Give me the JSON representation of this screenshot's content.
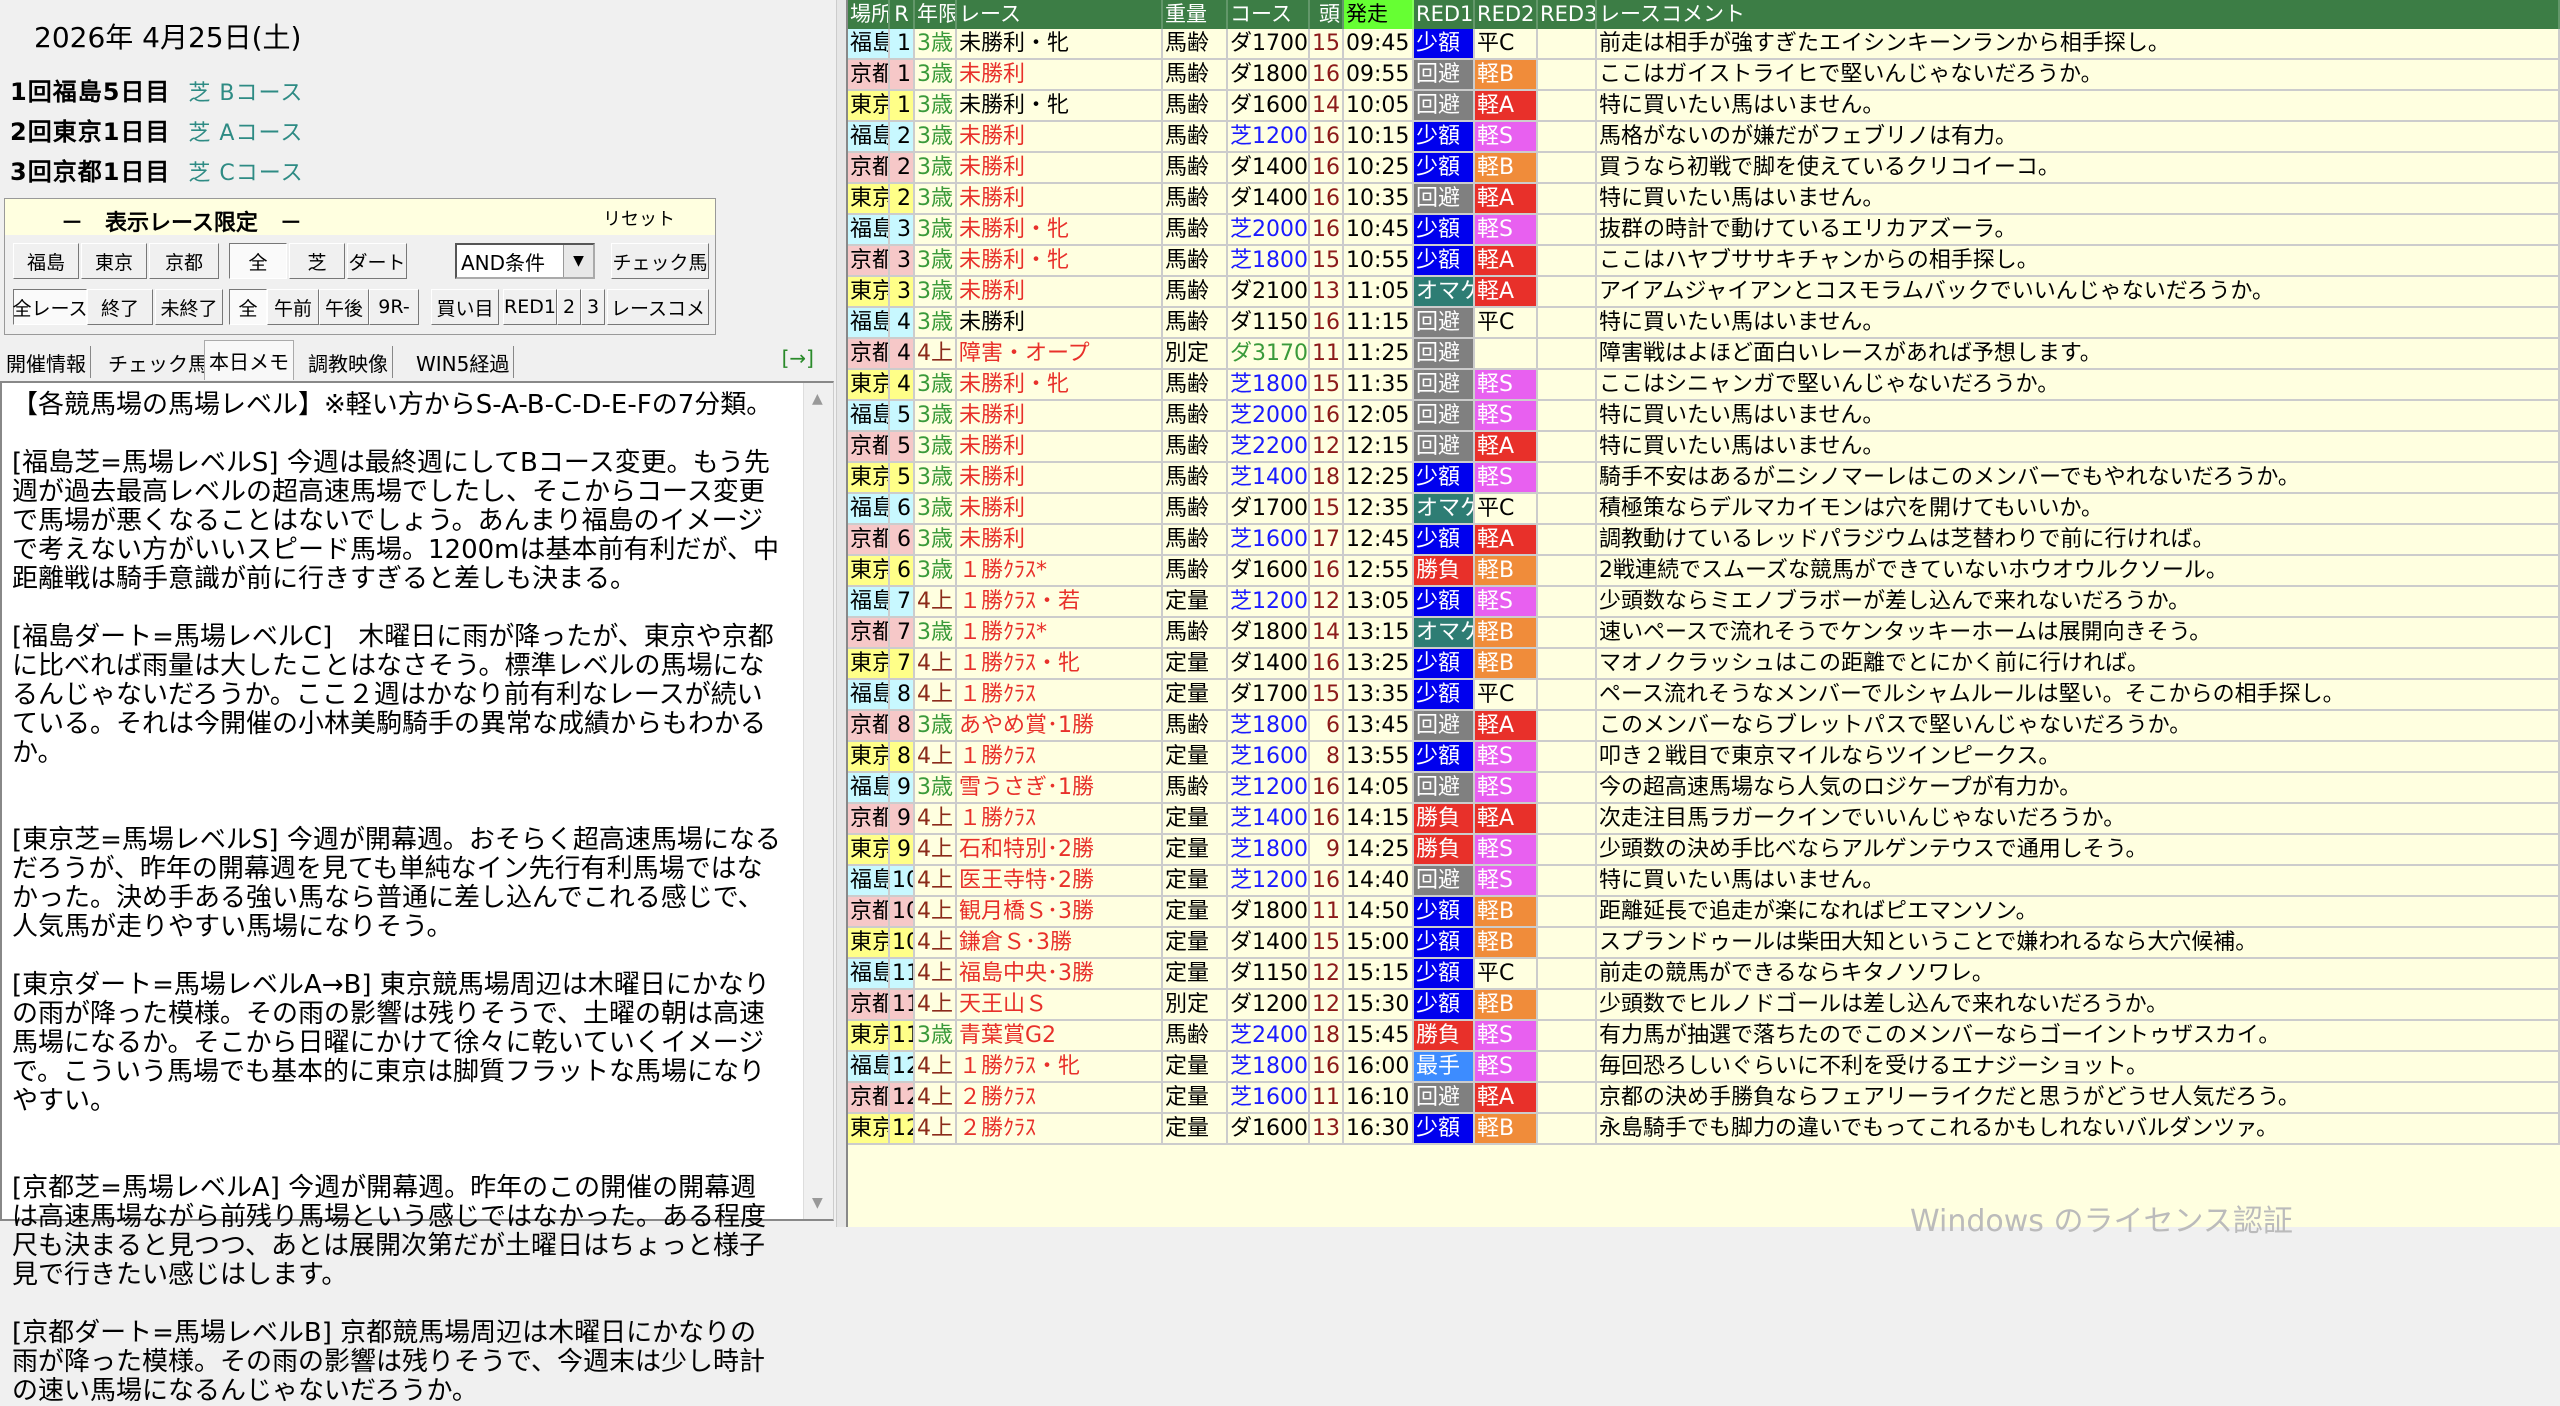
{
  "date": "2026年 4月25日(土)",
  "venues": [
    {
      "label": "1回福島5日目",
      "course": "芝 Bコース"
    },
    {
      "label": "2回東京1日目",
      "course": "芝 Aコース"
    },
    {
      "label": "3回京都1日目",
      "course": "芝 Cコース"
    }
  ],
  "filter": {
    "title": "－　表示レース限定　－",
    "reset": "リセット",
    "row1": [
      "福島",
      "東京",
      "京都",
      "全",
      "芝",
      "ダート"
    ],
    "condition": "AND条件",
    "check_horse": "チェック馬",
    "row2": [
      "全レース",
      "終了",
      "未終了",
      "全",
      "午前",
      "午後",
      "9R-",
      "買い目",
      "RED1",
      "2",
      "3",
      "レースコメ"
    ]
  },
  "tabs": [
    "開催情報",
    "チェック馬",
    "本日メモ",
    "調教映像",
    "WIN5経過"
  ],
  "active_tab": "本日メモ",
  "tab_arrow": "[→]",
  "memo": "【各競馬場の馬場レベル】※軽い方からS-A-B-C-D-E-Fの7分類。\n\n[福島芝=馬場レベルS] 今週は最終週にしてBコース変更。もう先週が過去最高レベルの超高速馬場でしたし、そこからコース変更で馬場が悪くなることはないでしょう。あんまり福島のイメージで考えない方がいいスピード馬場。1200mは基本前有利だが、中距離戦は騎手意識が前に行きすぎると差しも決まる。\n\n[福島ダート=馬場レベルC]　木曜日に雨が降ったが、東京や京都に比べれば雨量は大したことはなさそう。標準レベルの馬場になるんじゃないだろうか。ここ２週はかなり前有利なレースが続いている。それは今開催の小林美駒騎手の異常な成績からもわかるか。\n\n\n[東京芝=馬場レベルS] 今週が開幕週。おそらく超高速馬場になるだろうが、昨年の開幕週を見ても単純なイン先行有利馬場ではなかった。決め手ある強い馬なら普通に差し込んでこれる感じで、人気馬が走りやすい馬場になりそう。\n\n[東京ダート=馬場レベルA→B] 東京競馬場周辺は木曜日にかなりの雨が降った模様。その雨の影響は残りそうで、土曜の朝は高速馬場になるか。そこから日曜にかけて徐々に乾いていくイメージで。こういう馬場でも基本的に東京は脚質フラットな馬場になりやすい。\n\n\n[京都芝=馬場レベルA] 今週が開幕週。昨年のこの開催の開幕週は高速馬場ながら前残り馬場という感じではなかった。ある程度尺も決まると見つつ、あとは展開次第だが土曜日はちょっと様子見で行きたい感じはします。\n\n[京都ダート=馬場レベルB] 京都競馬場周辺は木曜日にかなりの雨が降った模様。その雨の影響は残りそうで、今週末は少し時計の速い馬場になるんじゃないだろうか。",
  "columns": [
    "場所",
    "R",
    "年限",
    "レース",
    "重量",
    "コース",
    "頭",
    "発走",
    "RED1",
    "RED2",
    "RED3",
    "レースコメント"
  ],
  "colors": {
    "header": "#3c7d45",
    "start_header": "#66ff33",
    "venue": {
      "福島": "#c8f8ff",
      "京都": "#f6c8c8",
      "東京": "#ffff88"
    },
    "age": {
      "3歳": "#3a9a3a",
      "4上": "#8b2a1a"
    },
    "race_red": "#e8302a",
    "heads": "#8b1a1a",
    "turf": "#1a1aff",
    "dirt": "#000000",
    "steeple": "#3a9a3a",
    "mark1": {
      "少額": "#0000ee",
      "回避": "#808080",
      "オマケ": "#2e7d74",
      "勝負": "#e8302a",
      "最手": "#3d8cff"
    },
    "mark2": {
      "軽B": "#f08c3a",
      "軽A": "#e8302a",
      "軽S": "#e860f0",
      "平C": ""
    }
  },
  "rows": [
    {
      "venue": "福島",
      "r": "1",
      "age": "3歳",
      "race": "未勝利・牝",
      "race_red": false,
      "weight": "馬齢",
      "course": "ダ1700",
      "heads": "15",
      "time": "09:45",
      "m1": "少額",
      "m2": "平C",
      "m3": "",
      "comment": "前走は相手が強すぎたエイシンキーンランから相手探し。"
    },
    {
      "venue": "京都",
      "r": "1",
      "age": "3歳",
      "race": "未勝利",
      "race_red": true,
      "weight": "馬齢",
      "course": "ダ1800",
      "heads": "16",
      "time": "09:55",
      "m1": "回避",
      "m2": "軽B",
      "m3": "",
      "comment": "ここはガイストライヒで堅いんじゃないだろうか。"
    },
    {
      "venue": "東京",
      "r": "1",
      "age": "3歳",
      "race": "未勝利・牝",
      "race_red": false,
      "weight": "馬齢",
      "course": "ダ1600",
      "heads": "14",
      "time": "10:05",
      "m1": "回避",
      "m2": "軽A",
      "m3": "",
      "comment": "特に買いたい馬はいません。"
    },
    {
      "venue": "福島",
      "r": "2",
      "age": "3歳",
      "race": "未勝利",
      "race_red": true,
      "weight": "馬齢",
      "course": "芝1200",
      "heads": "16",
      "time": "10:15",
      "m1": "少額",
      "m2": "軽S",
      "m3": "",
      "comment": "馬格がないのが嫌だがフェブリノは有力。"
    },
    {
      "venue": "京都",
      "r": "2",
      "age": "3歳",
      "race": "未勝利",
      "race_red": true,
      "weight": "馬齢",
      "course": "ダ1400",
      "heads": "16",
      "time": "10:25",
      "m1": "少額",
      "m2": "軽B",
      "m3": "",
      "comment": "買うなら初戦で脚を使えているクリコイーコ。"
    },
    {
      "venue": "東京",
      "r": "2",
      "age": "3歳",
      "race": "未勝利",
      "race_red": true,
      "weight": "馬齢",
      "course": "ダ1400",
      "heads": "16",
      "time": "10:35",
      "m1": "回避",
      "m2": "軽A",
      "m3": "",
      "comment": "特に買いたい馬はいません。"
    },
    {
      "venue": "福島",
      "r": "3",
      "age": "3歳",
      "race": "未勝利・牝",
      "race_red": true,
      "weight": "馬齢",
      "course": "芝2000",
      "heads": "16",
      "time": "10:45",
      "m1": "少額",
      "m2": "軽S",
      "m3": "",
      "comment": "抜群の時計で動けているエリカアズーラ。"
    },
    {
      "venue": "京都",
      "r": "3",
      "age": "3歳",
      "race": "未勝利・牝",
      "race_red": true,
      "weight": "馬齢",
      "course": "芝1800",
      "heads": "15",
      "time": "10:55",
      "m1": "少額",
      "m2": "軽A",
      "m3": "",
      "comment": "ここはハヤブササキチャンからの相手探し。"
    },
    {
      "venue": "東京",
      "r": "3",
      "age": "3歳",
      "race": "未勝利",
      "race_red": true,
      "weight": "馬齢",
      "course": "ダ2100",
      "heads": "13",
      "time": "11:05",
      "m1": "オマケ",
      "m2": "軽A",
      "m3": "",
      "comment": "アイアムジャイアンとコスモラムバックでいいんじゃないだろうか。"
    },
    {
      "venue": "福島",
      "r": "4",
      "age": "3歳",
      "race": "未勝利",
      "race_red": false,
      "weight": "馬齢",
      "course": "ダ1150",
      "heads": "16",
      "time": "11:15",
      "m1": "回避",
      "m2": "平C",
      "m3": "",
      "comment": "特に買いたい馬はいません。"
    },
    {
      "venue": "京都",
      "r": "4",
      "age": "4上",
      "race": "障害・オープ",
      "race_red": true,
      "weight": "別定",
      "course": "ダ3170",
      "heads": "11",
      "time": "11:25",
      "m1": "回避",
      "m2": "",
      "m3": "",
      "comment": "障害戦はよほど面白いレースがあれば予想します。"
    },
    {
      "venue": "東京",
      "r": "4",
      "age": "3歳",
      "race": "未勝利・牝",
      "race_red": true,
      "weight": "馬齢",
      "course": "芝1800",
      "heads": "15",
      "time": "11:35",
      "m1": "回避",
      "m2": "軽S",
      "m3": "",
      "comment": "ここはシニャンガで堅いんじゃないだろうか。"
    },
    {
      "venue": "福島",
      "r": "5",
      "age": "3歳",
      "race": "未勝利",
      "race_red": true,
      "weight": "馬齢",
      "course": "芝2000",
      "heads": "16",
      "time": "12:05",
      "m1": "回避",
      "m2": "軽S",
      "m3": "",
      "comment": "特に買いたい馬はいません。"
    },
    {
      "venue": "京都",
      "r": "5",
      "age": "3歳",
      "race": "未勝利",
      "race_red": true,
      "weight": "馬齢",
      "course": "芝2200",
      "heads": "12",
      "time": "12:15",
      "m1": "回避",
      "m2": "軽A",
      "m3": "",
      "comment": "特に買いたい馬はいません。"
    },
    {
      "venue": "東京",
      "r": "5",
      "age": "3歳",
      "race": "未勝利",
      "race_red": true,
      "weight": "馬齢",
      "course": "芝1400",
      "heads": "18",
      "time": "12:25",
      "m1": "少額",
      "m2": "軽S",
      "m3": "",
      "comment": "騎手不安はあるがニシノマーレはこのメンバーでもやれないだろうか。"
    },
    {
      "venue": "福島",
      "r": "6",
      "age": "3歳",
      "race": "未勝利",
      "race_red": true,
      "weight": "馬齢",
      "course": "ダ1700",
      "heads": "15",
      "time": "12:35",
      "m1": "オマケ",
      "m2": "平C",
      "m3": "",
      "comment": "積極策ならデルマカイモンは穴を開けてもいいか。"
    },
    {
      "venue": "京都",
      "r": "6",
      "age": "3歳",
      "race": "未勝利",
      "race_red": true,
      "weight": "馬齢",
      "course": "芝1600",
      "heads": "17",
      "time": "12:45",
      "m1": "少額",
      "m2": "軽A",
      "m3": "",
      "comment": "調教動けているレッドパラジウムは芝替わりで前に行ければ。"
    },
    {
      "venue": "東京",
      "r": "6",
      "age": "3歳",
      "race": "１勝ｸﾗｽ*",
      "race_red": true,
      "weight": "馬齢",
      "course": "ダ1600",
      "heads": "16",
      "time": "12:55",
      "m1": "勝負",
      "m2": "軽B",
      "m3": "",
      "comment": "2戦連続でスムーズな競馬ができていないホウオウルクソール。"
    },
    {
      "venue": "福島",
      "r": "7",
      "age": "4上",
      "race": "１勝ｸﾗｽ・若",
      "race_red": true,
      "weight": "定量",
      "course": "芝1200",
      "heads": "12",
      "time": "13:05",
      "m1": "少額",
      "m2": "軽S",
      "m3": "",
      "comment": "少頭数ならミエノブラボーが差し込んで来れないだろうか。"
    },
    {
      "venue": "京都",
      "r": "7",
      "age": "3歳",
      "race": "１勝ｸﾗｽ*",
      "race_red": true,
      "weight": "馬齢",
      "course": "ダ1800",
      "heads": "14",
      "time": "13:15",
      "m1": "オマケ",
      "m2": "軽B",
      "m3": "",
      "comment": "速いペースで流れそうでケンタッキーホームは展開向きそう。"
    },
    {
      "venue": "東京",
      "r": "7",
      "age": "4上",
      "race": "１勝ｸﾗｽ・牝",
      "race_red": true,
      "weight": "定量",
      "course": "ダ1400",
      "heads": "16",
      "time": "13:25",
      "m1": "少額",
      "m2": "軽B",
      "m3": "",
      "comment": "マオノクラッシュはこの距離でとにかく前に行ければ。"
    },
    {
      "venue": "福島",
      "r": "8",
      "age": "4上",
      "race": "１勝ｸﾗｽ",
      "race_red": true,
      "weight": "定量",
      "course": "ダ1700",
      "heads": "15",
      "time": "13:35",
      "m1": "少額",
      "m2": "平C",
      "m3": "",
      "comment": "ペース流れそうなメンバーでルシャムルールは堅い。そこからの相手探し。"
    },
    {
      "venue": "京都",
      "r": "8",
      "age": "3歳",
      "race": "あやめ賞･1勝",
      "race_red": true,
      "weight": "馬齢",
      "course": "芝1800",
      "heads": "6",
      "time": "13:45",
      "m1": "回避",
      "m2": "軽A",
      "m3": "",
      "comment": "このメンバーならブレットパスで堅いんじゃないだろうか。"
    },
    {
      "venue": "東京",
      "r": "8",
      "age": "4上",
      "race": "１勝ｸﾗｽ",
      "race_red": true,
      "weight": "定量",
      "course": "芝1600",
      "heads": "8",
      "time": "13:55",
      "m1": "少額",
      "m2": "軽S",
      "m3": "",
      "comment": "叩き２戦目で東京マイルならツインピークス。"
    },
    {
      "venue": "福島",
      "r": "9",
      "age": "3歳",
      "race": "雪うさぎ･1勝",
      "race_red": true,
      "weight": "馬齢",
      "course": "芝1200",
      "heads": "16",
      "time": "14:05",
      "m1": "回避",
      "m2": "軽S",
      "m3": "",
      "comment": "今の超高速馬場なら人気のロジケープが有力か。"
    },
    {
      "venue": "京都",
      "r": "9",
      "age": "4上",
      "race": "１勝ｸﾗｽ",
      "race_red": true,
      "weight": "定量",
      "course": "芝1400",
      "heads": "16",
      "time": "14:15",
      "m1": "勝負",
      "m2": "軽A",
      "m3": "",
      "comment": "次走注目馬ラガークインでいいんじゃないだろうか。"
    },
    {
      "venue": "東京",
      "r": "9",
      "age": "4上",
      "race": "石和特別･2勝",
      "race_red": true,
      "weight": "定量",
      "course": "芝1800",
      "heads": "9",
      "time": "14:25",
      "m1": "勝負",
      "m2": "軽S",
      "m3": "",
      "comment": "少頭数の決め手比べならアルゲンテウスで通用しそう。"
    },
    {
      "venue": "福島",
      "r": "10",
      "age": "4上",
      "race": "医王寺特･2勝",
      "race_red": true,
      "weight": "定量",
      "course": "芝1200",
      "heads": "16",
      "time": "14:40",
      "m1": "回避",
      "m2": "軽S",
      "m3": "",
      "comment": "特に買いたい馬はいません。"
    },
    {
      "venue": "京都",
      "r": "10",
      "age": "4上",
      "race": "観月橋Ｓ･3勝",
      "race_red": true,
      "weight": "定量",
      "course": "ダ1800",
      "heads": "11",
      "time": "14:50",
      "m1": "少額",
      "m2": "軽B",
      "m3": "",
      "comment": "距離延長で追走が楽になればピエマンソン。"
    },
    {
      "venue": "東京",
      "r": "10",
      "age": "4上",
      "race": "鎌倉Ｓ･3勝",
      "race_red": true,
      "weight": "定量",
      "course": "ダ1400",
      "heads": "15",
      "time": "15:00",
      "m1": "少額",
      "m2": "軽B",
      "m3": "",
      "comment": "スプランドゥールは柴田大知ということで嫌われるなら大穴候補。"
    },
    {
      "venue": "福島",
      "r": "11",
      "age": "4上",
      "race": "福島中央･3勝",
      "race_red": true,
      "weight": "定量",
      "course": "ダ1150",
      "heads": "12",
      "time": "15:15",
      "m1": "少額",
      "m2": "平C",
      "m3": "",
      "comment": "前走の競馬ができるならキタノソワレ。"
    },
    {
      "venue": "京都",
      "r": "11",
      "age": "4上",
      "race": "天王山Ｓ",
      "race_red": true,
      "weight": "別定",
      "course": "ダ1200",
      "heads": "12",
      "time": "15:30",
      "m1": "少額",
      "m2": "軽B",
      "m3": "",
      "comment": "少頭数でヒルノドゴールは差し込んで来れないだろうか。"
    },
    {
      "venue": "東京",
      "r": "11",
      "age": "3歳",
      "race": "青葉賞G2",
      "race_red": true,
      "weight": "馬齢",
      "course": "芝2400",
      "heads": "18",
      "time": "15:45",
      "m1": "勝負",
      "m2": "軽S",
      "m3": "",
      "comment": "有力馬が抽選で落ちたのでこのメンバーならゴーイントゥザスカイ。"
    },
    {
      "venue": "福島",
      "r": "12",
      "age": "4上",
      "race": "１勝ｸﾗｽ・牝",
      "race_red": true,
      "weight": "定量",
      "course": "芝1800",
      "heads": "16",
      "time": "16:00",
      "m1": "最手",
      "m2": "軽S",
      "m3": "",
      "comment": "毎回恐ろしいぐらいに不利を受けるエナジーショット。"
    },
    {
      "venue": "京都",
      "r": "12",
      "age": "4上",
      "race": "２勝ｸﾗｽ",
      "race_red": true,
      "weight": "定量",
      "course": "芝1600",
      "heads": "11",
      "time": "16:10",
      "m1": "回避",
      "m2": "軽A",
      "m3": "",
      "comment": "京都の決め手勝負ならフェアリーライクだと思うがどうせ人気だろう。"
    },
    {
      "venue": "東京",
      "r": "12",
      "age": "4上",
      "race": "２勝ｸﾗｽ",
      "race_red": true,
      "weight": "定量",
      "course": "ダ1600",
      "heads": "13",
      "time": "16:30",
      "m1": "少額",
      "m2": "軽B",
      "m3": "",
      "comment": "永島騎手でも脚力の違いでもってこれるかもしれないバルダンツァ。"
    }
  ],
  "watermark": "Windows のライセンス認証"
}
